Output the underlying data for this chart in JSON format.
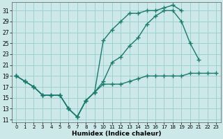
{
  "xlabel": "Humidex (Indice chaleur)",
  "xlim": [
    -0.5,
    23.5
  ],
  "ylim": [
    10.5,
    32.5
  ],
  "yticks": [
    11,
    13,
    15,
    17,
    19,
    21,
    23,
    25,
    27,
    29,
    31
  ],
  "xticks": [
    0,
    1,
    2,
    3,
    4,
    5,
    6,
    7,
    8,
    9,
    10,
    11,
    12,
    13,
    14,
    15,
    16,
    17,
    18,
    19,
    20,
    21,
    22,
    23
  ],
  "background_color": "#cce8e8",
  "grid_color": "#99cccc",
  "line_color": "#1a7a6e",
  "lines": [
    {
      "x": [
        0,
        1,
        2,
        3,
        4,
        5,
        6,
        7,
        8,
        9,
        10,
        11,
        12,
        13,
        14,
        15,
        16,
        17,
        18,
        19,
        20,
        21,
        22,
        23
      ],
      "y": [
        19,
        18,
        17,
        15.5,
        15.5,
        15.5,
        13,
        11.5,
        14.5,
        16,
        17.5,
        17.5,
        17.5,
        18,
        18.5,
        19,
        19,
        19,
        19,
        19,
        19.5,
        19.5,
        19.5,
        19.5
      ]
    },
    {
      "x": [
        0,
        1,
        2,
        3,
        4,
        5,
        6,
        7,
        8,
        9,
        10,
        11,
        12,
        13,
        14,
        15,
        16,
        17,
        18,
        19,
        20,
        21,
        22,
        23
      ],
      "y": [
        19,
        18,
        17,
        15.5,
        15.5,
        15.5,
        13,
        11.5,
        14.5,
        16,
        18,
        21.5,
        22.5,
        24.5,
        26,
        28.5,
        30,
        31,
        31,
        29,
        25,
        22,
        null,
        null
      ]
    },
    {
      "x": [
        0,
        1,
        2,
        3,
        4,
        5,
        6,
        7,
        8,
        9,
        10,
        11,
        12,
        13,
        14,
        15,
        16,
        17,
        18,
        19,
        20,
        21,
        22,
        23
      ],
      "y": [
        19,
        18,
        17,
        15.5,
        15.5,
        15.5,
        13,
        11.5,
        14.5,
        16,
        25.5,
        27.5,
        29,
        30.5,
        30.5,
        31,
        31,
        31.5,
        32,
        31,
        null,
        null,
        null,
        null
      ]
    }
  ]
}
